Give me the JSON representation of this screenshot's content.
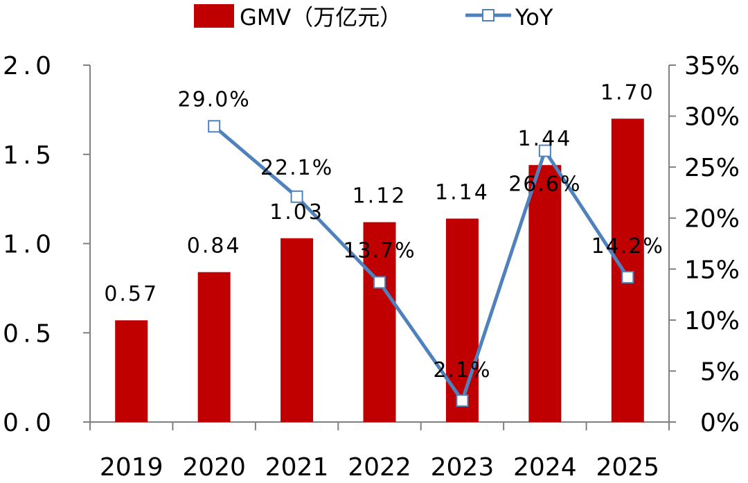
{
  "colors": {
    "bar": "#C00000",
    "line": "#4F81BD",
    "axis": "#7F7F7F",
    "marker_fill": "#FFFFFF"
  },
  "legend": {
    "gmv_label": "GMV（万亿元）",
    "yoy_label": "YoY"
  },
  "chart_data": {
    "type": "bar",
    "title": "",
    "xlabel": "",
    "ylabel": "",
    "categories": [
      "2019",
      "2020",
      "2021",
      "2022",
      "2023",
      "2024",
      "2025"
    ],
    "ylim": [
      0,
      2.0
    ],
    "y_ticks": [
      "0.0",
      "0.5",
      "1.0",
      "1.5",
      "2.0"
    ],
    "y2lim": [
      0,
      35
    ],
    "y2_ticks": [
      "0%",
      "5%",
      "10%",
      "15%",
      "20%",
      "25%",
      "30%",
      "35%"
    ],
    "series": [
      {
        "name": "GMV（万亿元）",
        "type": "bar",
        "axis": "left",
        "values": [
          0.57,
          0.84,
          1.03,
          1.12,
          1.14,
          1.44,
          1.7
        ],
        "labels": [
          "0.57",
          "0.84",
          "1.03",
          "1.12",
          "1.14",
          "1.44",
          "1.70"
        ]
      },
      {
        "name": "YoY",
        "type": "line",
        "axis": "right",
        "values": [
          null,
          29.0,
          22.1,
          13.7,
          2.1,
          26.6,
          14.2
        ],
        "labels": [
          "",
          "29.0%",
          "22.1%",
          "13.7%",
          "2.1%",
          "26.6%",
          "14.2%"
        ]
      }
    ],
    "grid": false,
    "legend_position": "top-center"
  }
}
